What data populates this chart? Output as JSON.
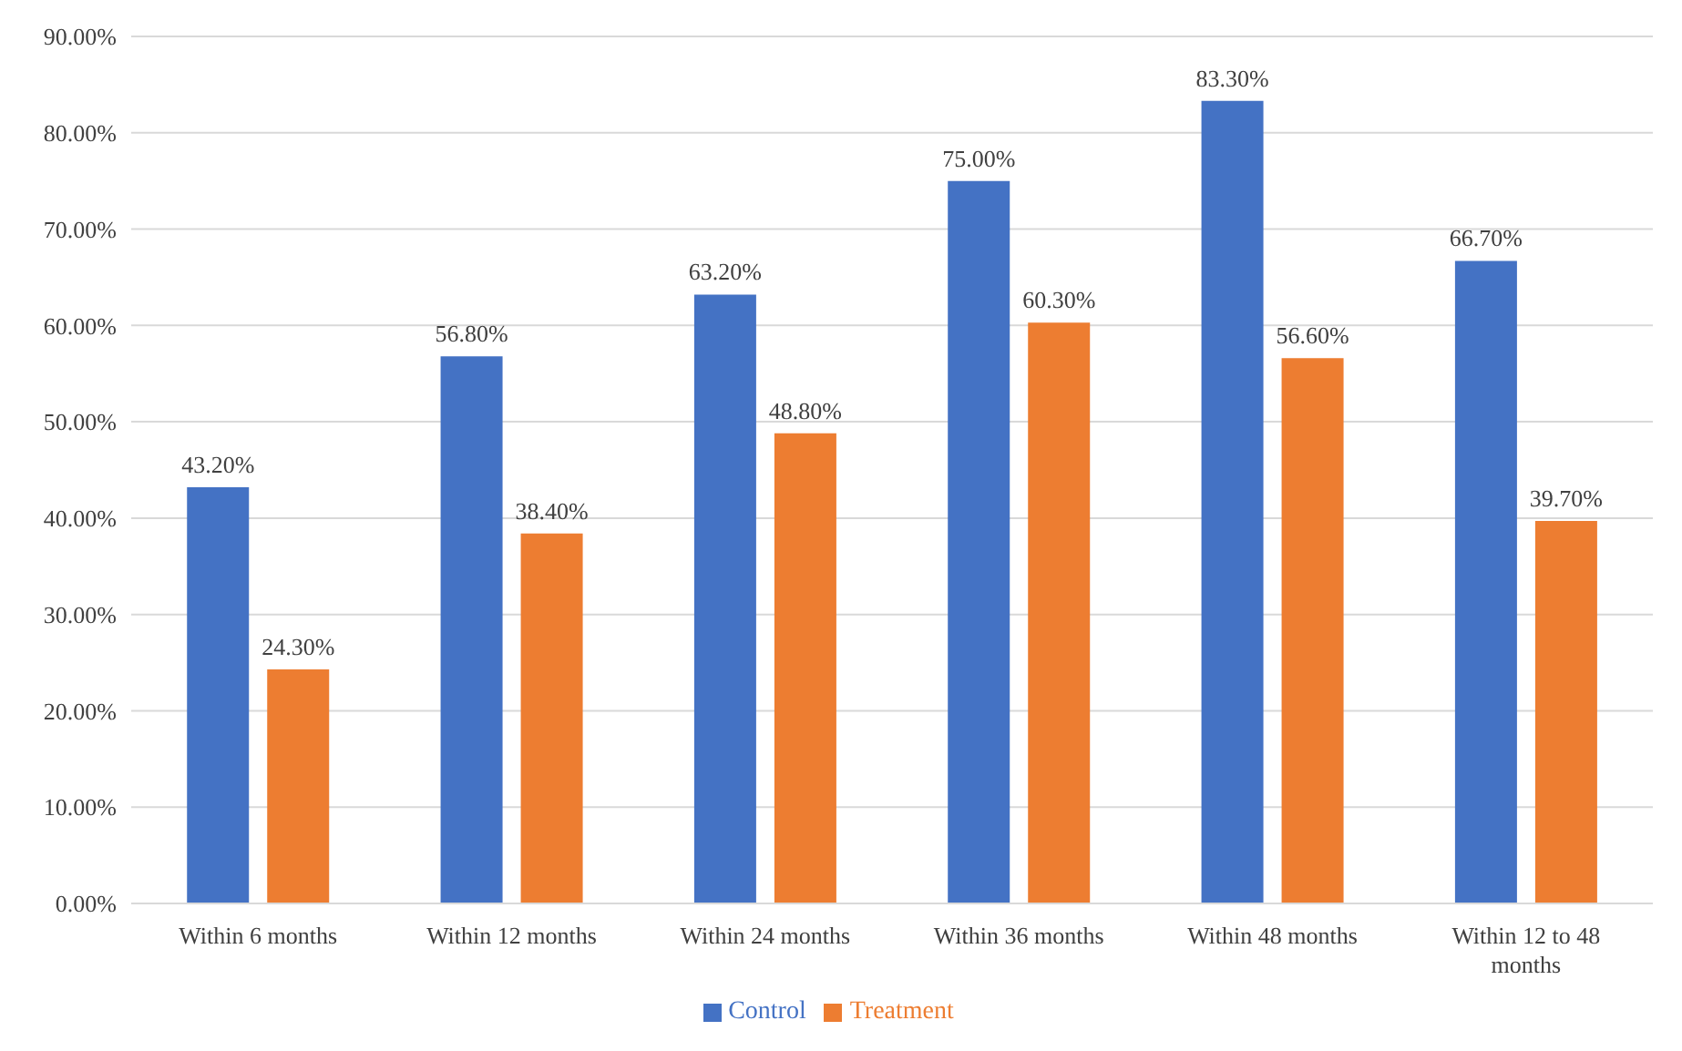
{
  "chart_data": {
    "type": "bar",
    "categories": [
      "Within 6 months",
      "Within 12 months",
      "Within 24 months",
      "Within 36 months",
      "Within 48 months",
      "Within 12 to 48 months"
    ],
    "series": [
      {
        "name": "Control",
        "color": "#4472c4",
        "values": [
          43.2,
          56.8,
          63.2,
          75.0,
          83.3,
          66.7
        ],
        "value_labels": [
          "43.20%",
          "56.80%",
          "63.20%",
          "75.00%",
          "83.30%",
          "66.70%"
        ]
      },
      {
        "name": "Treatment",
        "color": "#ed7d31",
        "values": [
          24.3,
          38.4,
          48.8,
          60.3,
          56.6,
          39.7
        ],
        "value_labels": [
          "24.30%",
          "38.40%",
          "48.80%",
          "60.30%",
          "56.60%",
          "39.70%"
        ]
      }
    ],
    "ylim": [
      0,
      90
    ],
    "yticks": [
      {
        "value": 0,
        "label": "0.00%"
      },
      {
        "value": 10,
        "label": "10.00%"
      },
      {
        "value": 20,
        "label": "20.00%"
      },
      {
        "value": 30,
        "label": "30.00%"
      },
      {
        "value": 40,
        "label": "40.00%"
      },
      {
        "value": 50,
        "label": "50.00%"
      },
      {
        "value": 60,
        "label": "60.00%"
      },
      {
        "value": 70,
        "label": "70.00%"
      },
      {
        "value": 80,
        "label": "80.00%"
      },
      {
        "value": 90,
        "label": "90.00%"
      }
    ],
    "grid": "y",
    "legend": "bottom"
  }
}
